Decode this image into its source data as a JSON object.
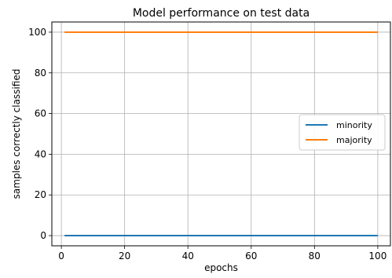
{
  "chart_data": {
    "type": "line",
    "title": "Model performance on test data",
    "xlabel": "epochs",
    "ylabel": "samples correctly classified",
    "xlim": [
      -3,
      104
    ],
    "ylim": [
      -5,
      105
    ],
    "xticks": [
      0,
      20,
      40,
      60,
      80,
      100
    ],
    "yticks": [
      0,
      20,
      40,
      60,
      80,
      100
    ],
    "grid": true,
    "legend_position": "center-right",
    "series": [
      {
        "name": "minority",
        "color": "#1f77b4",
        "x": [
          1,
          100
        ],
        "y": [
          0,
          0
        ]
      },
      {
        "name": "majority",
        "color": "#ff7f0e",
        "x": [
          1,
          100
        ],
        "y": [
          100,
          100
        ]
      }
    ]
  }
}
